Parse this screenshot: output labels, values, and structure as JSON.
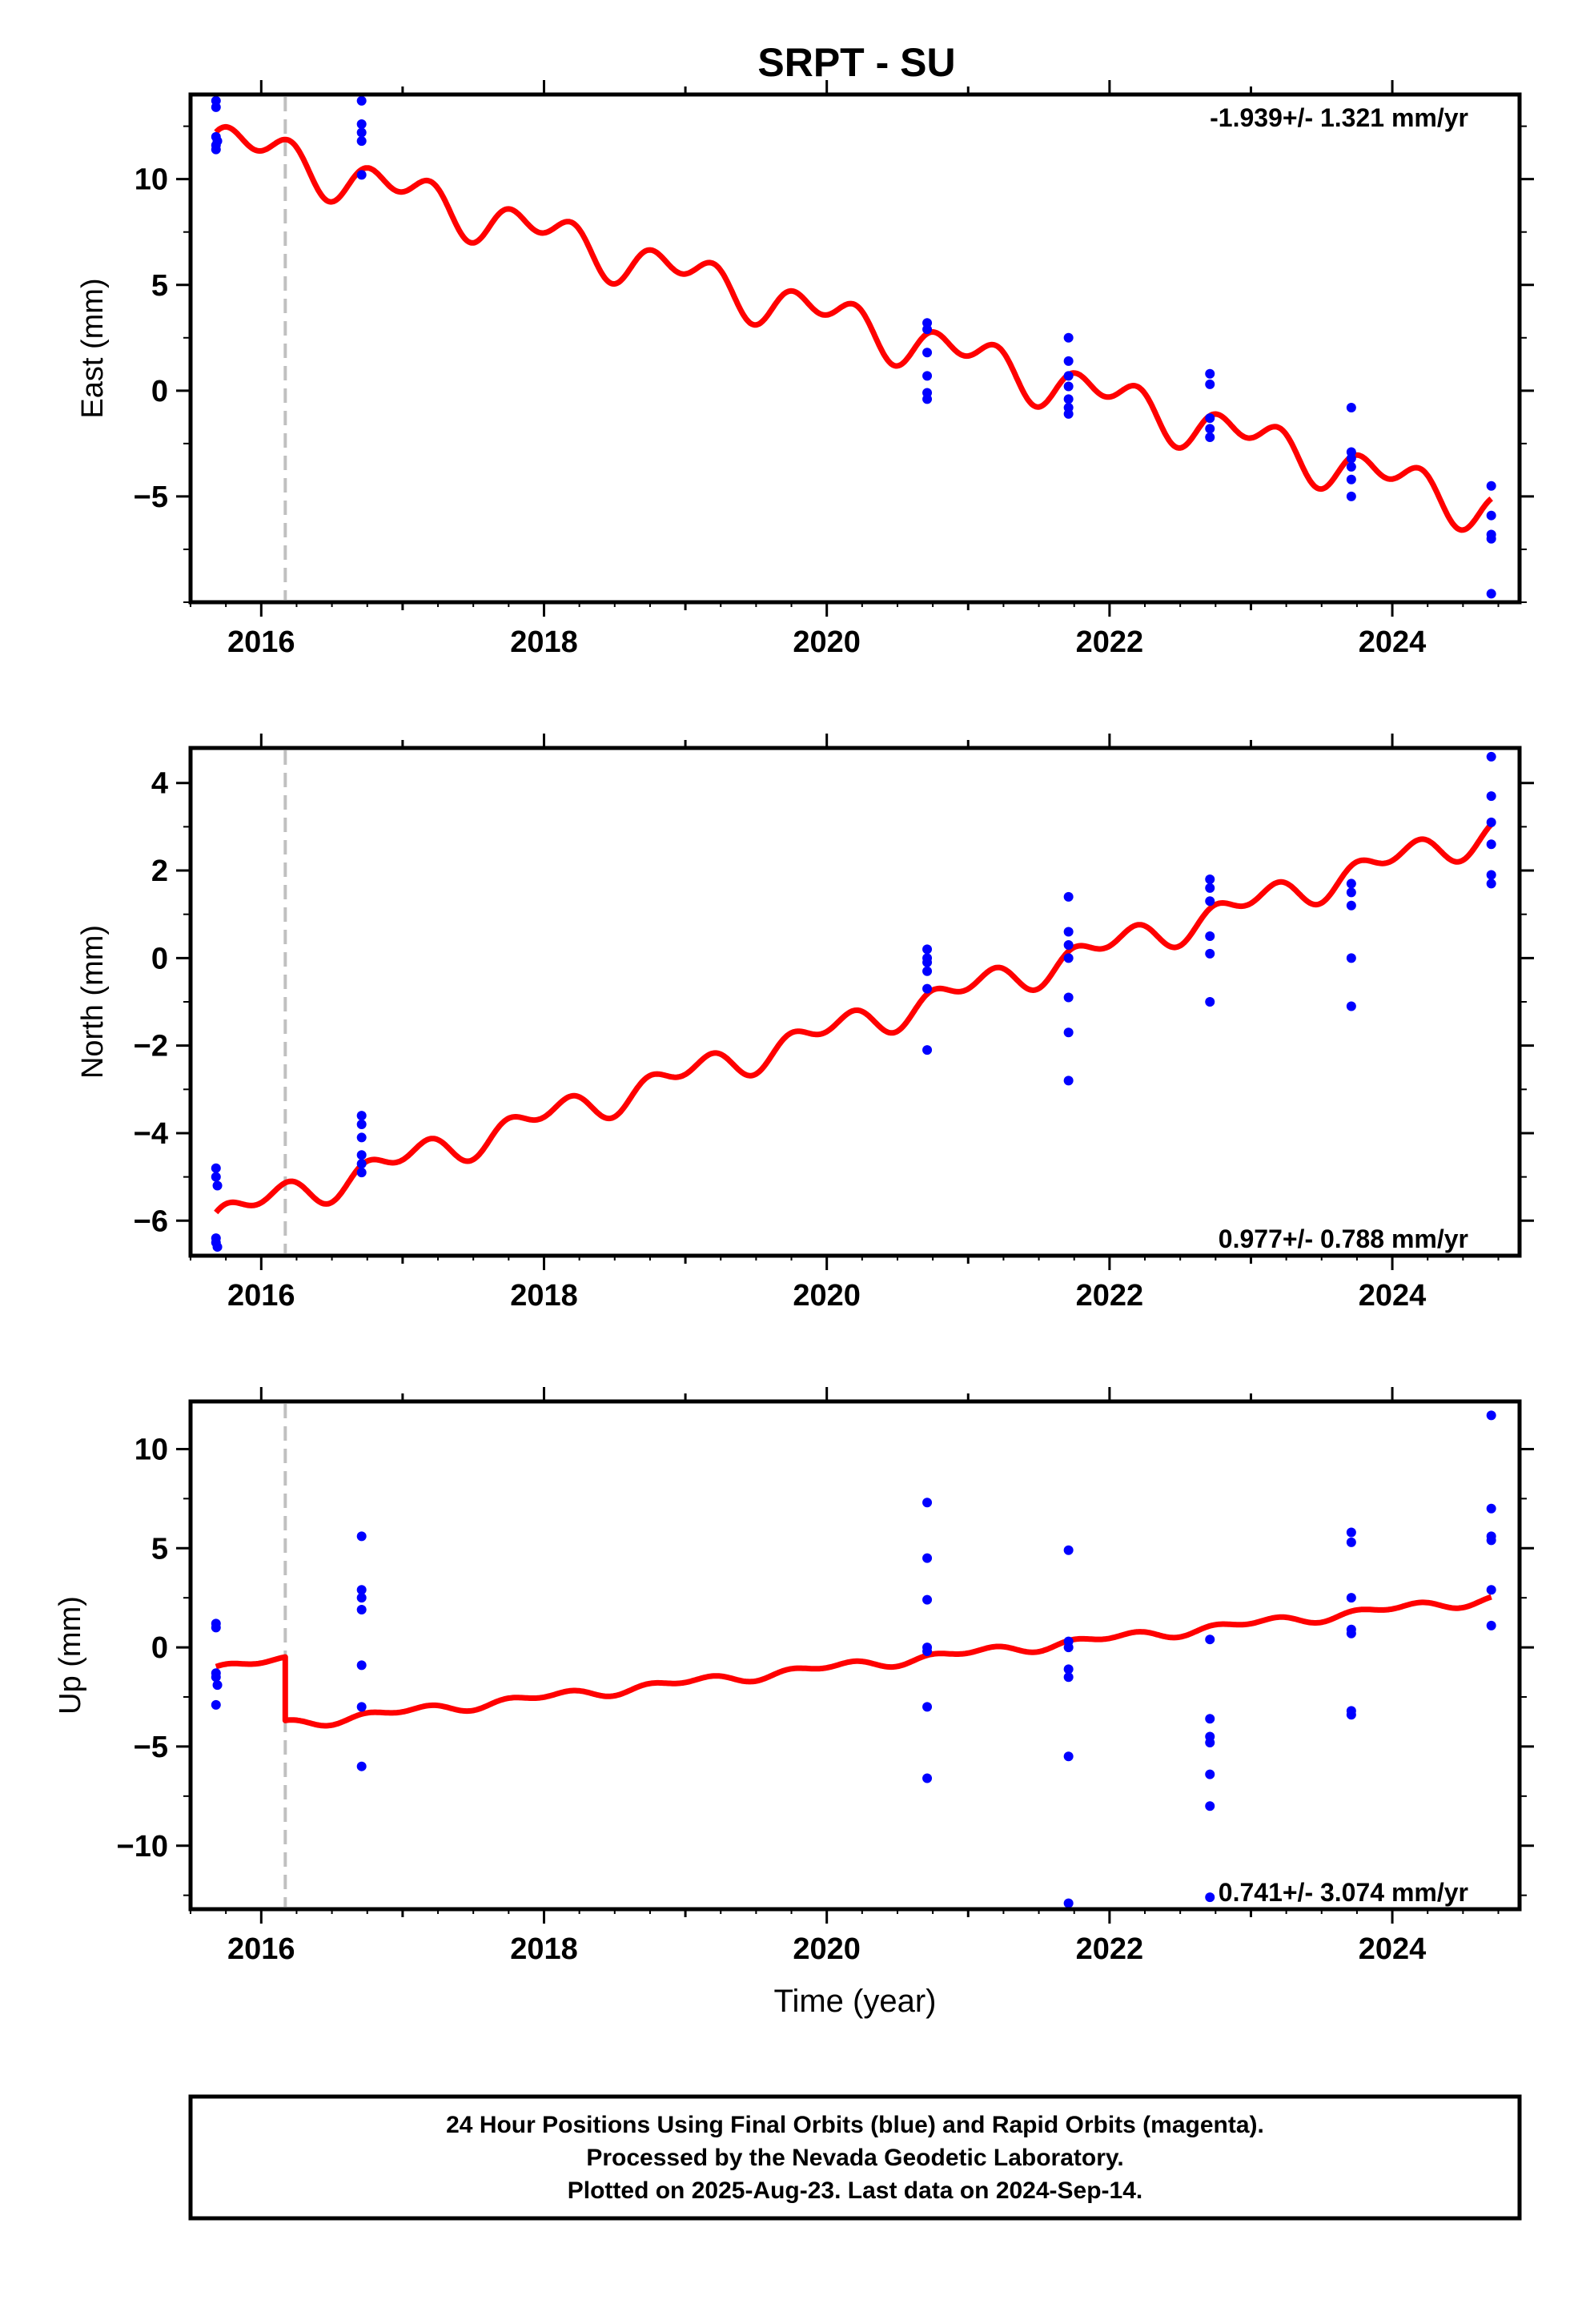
{
  "title": "SRPT - SU",
  "colors": {
    "data_points": "#0000ff",
    "model_line": "#ff0000",
    "offset_line": "#c0c0c0",
    "frame": "#000000"
  },
  "xaxis": {
    "label": "Time (year)",
    "range": [
      2015.5,
      2024.9
    ],
    "major_ticks": [
      2016,
      2018,
      2020,
      2022,
      2024
    ],
    "tick_labels": [
      "2016",
      "2018",
      "2020",
      "2022",
      "2024"
    ]
  },
  "equipment_offset_year": 2016.17,
  "chart_data": [
    {
      "type": "scatter",
      "component": "East",
      "ylabel": "East (mm)",
      "ylim": [
        -10,
        14
      ],
      "y_ticks": [
        -5,
        0,
        5,
        10
      ],
      "y_tick_labels": [
        "−5",
        "0",
        "5",
        "10"
      ],
      "rate_label": "-1.939+/- 1.321 mm/yr",
      "rate_position": "top-right",
      "model": {
        "intercept_at_2016": 11.3,
        "rate": -1.939,
        "seasonal_amplitude": 1.2,
        "offset_at_break": 0.0
      },
      "points": [
        {
          "x": 2015.68,
          "y": 13.7
        },
        {
          "x": 2015.68,
          "y": 13.4
        },
        {
          "x": 2015.68,
          "y": 12.0
        },
        {
          "x": 2015.68,
          "y": 11.6
        },
        {
          "x": 2015.68,
          "y": 11.4
        },
        {
          "x": 2015.69,
          "y": 11.8
        },
        {
          "x": 2016.71,
          "y": 13.7
        },
        {
          "x": 2016.71,
          "y": 12.6
        },
        {
          "x": 2016.71,
          "y": 12.2
        },
        {
          "x": 2016.71,
          "y": 11.8
        },
        {
          "x": 2016.71,
          "y": 10.2
        },
        {
          "x": 2020.71,
          "y": 3.2
        },
        {
          "x": 2020.71,
          "y": 2.9
        },
        {
          "x": 2020.71,
          "y": 1.8
        },
        {
          "x": 2020.71,
          "y": 0.7
        },
        {
          "x": 2020.71,
          "y": -0.1
        },
        {
          "x": 2020.71,
          "y": -0.4
        },
        {
          "x": 2021.71,
          "y": 2.5
        },
        {
          "x": 2021.71,
          "y": 1.4
        },
        {
          "x": 2021.71,
          "y": 0.7
        },
        {
          "x": 2021.71,
          "y": 0.2
        },
        {
          "x": 2021.71,
          "y": -0.4
        },
        {
          "x": 2021.71,
          "y": -0.8
        },
        {
          "x": 2021.71,
          "y": -1.1
        },
        {
          "x": 2022.71,
          "y": 0.8
        },
        {
          "x": 2022.71,
          "y": 0.3
        },
        {
          "x": 2022.71,
          "y": -1.3
        },
        {
          "x": 2022.71,
          "y": -1.8
        },
        {
          "x": 2022.71,
          "y": -2.2
        },
        {
          "x": 2023.71,
          "y": -0.8
        },
        {
          "x": 2023.71,
          "y": -2.9
        },
        {
          "x": 2023.71,
          "y": -3.2
        },
        {
          "x": 2023.71,
          "y": -3.6
        },
        {
          "x": 2023.71,
          "y": -4.2
        },
        {
          "x": 2023.71,
          "y": -5.0
        },
        {
          "x": 2024.7,
          "y": -4.5
        },
        {
          "x": 2024.7,
          "y": -5.9
        },
        {
          "x": 2024.7,
          "y": -6.8
        },
        {
          "x": 2024.7,
          "y": -7.0
        },
        {
          "x": 2024.7,
          "y": -9.6
        }
      ]
    },
    {
      "type": "scatter",
      "component": "North",
      "ylabel": "North (mm)",
      "ylim": [
        -6.8,
        4.8
      ],
      "y_ticks": [
        -6,
        -4,
        -2,
        0,
        2,
        4
      ],
      "y_tick_labels": [
        "−6",
        "−4",
        "−2",
        "0",
        "2",
        "4"
      ],
      "rate_label": "0.977+/- 0.788 mm/yr",
      "rate_position": "bottom-right",
      "model": {
        "intercept_at_2016": -5.6,
        "rate": 0.977,
        "seasonal_amplitude": 0.4,
        "offset_at_break": 0.0
      },
      "points": [
        {
          "x": 2015.68,
          "y": -4.8
        },
        {
          "x": 2015.68,
          "y": -5.0
        },
        {
          "x": 2015.69,
          "y": -5.2
        },
        {
          "x": 2015.68,
          "y": -6.4
        },
        {
          "x": 2015.68,
          "y": -6.5
        },
        {
          "x": 2015.69,
          "y": -6.6
        },
        {
          "x": 2016.71,
          "y": -3.6
        },
        {
          "x": 2016.71,
          "y": -3.8
        },
        {
          "x": 2016.71,
          "y": -4.1
        },
        {
          "x": 2016.71,
          "y": -4.5
        },
        {
          "x": 2016.71,
          "y": -4.7
        },
        {
          "x": 2016.71,
          "y": -4.9
        },
        {
          "x": 2020.71,
          "y": 0.2
        },
        {
          "x": 2020.71,
          "y": 0.0
        },
        {
          "x": 2020.71,
          "y": -0.1
        },
        {
          "x": 2020.71,
          "y": -0.3
        },
        {
          "x": 2020.71,
          "y": -0.7
        },
        {
          "x": 2020.71,
          "y": -2.1
        },
        {
          "x": 2021.71,
          "y": 1.4
        },
        {
          "x": 2021.71,
          "y": 0.6
        },
        {
          "x": 2021.71,
          "y": 0.3
        },
        {
          "x": 2021.71,
          "y": 0.0
        },
        {
          "x": 2021.71,
          "y": -0.9
        },
        {
          "x": 2021.71,
          "y": -1.7
        },
        {
          "x": 2021.71,
          "y": -2.8
        },
        {
          "x": 2022.71,
          "y": 1.8
        },
        {
          "x": 2022.71,
          "y": 1.6
        },
        {
          "x": 2022.71,
          "y": 1.3
        },
        {
          "x": 2022.71,
          "y": 0.5
        },
        {
          "x": 2022.71,
          "y": 0.1
        },
        {
          "x": 2022.71,
          "y": -1.0
        },
        {
          "x": 2023.71,
          "y": 1.7
        },
        {
          "x": 2023.71,
          "y": 1.5
        },
        {
          "x": 2023.71,
          "y": 1.2
        },
        {
          "x": 2023.71,
          "y": 0.0
        },
        {
          "x": 2023.71,
          "y": -1.1
        },
        {
          "x": 2024.7,
          "y": 4.6
        },
        {
          "x": 2024.7,
          "y": 3.7
        },
        {
          "x": 2024.7,
          "y": 3.1
        },
        {
          "x": 2024.7,
          "y": 2.6
        },
        {
          "x": 2024.7,
          "y": 1.9
        },
        {
          "x": 2024.7,
          "y": 1.7
        }
      ]
    },
    {
      "type": "scatter",
      "component": "Up",
      "ylabel": "Up (mm)",
      "ylim": [
        -13.2,
        12.4
      ],
      "y_ticks": [
        -10,
        -5,
        0,
        5,
        10
      ],
      "y_tick_labels": [
        "−10",
        "−5",
        "0",
        "5",
        "10"
      ],
      "rate_label": "0.741+/- 3.074 mm/yr",
      "rate_position": "bottom-right",
      "model": {
        "intercept_at_2016": -0.8,
        "rate": 0.741,
        "seasonal_amplitude": 0.25,
        "offset_at_break": -3.2
      },
      "points": [
        {
          "x": 2015.68,
          "y": 1.2
        },
        {
          "x": 2015.68,
          "y": 1.0
        },
        {
          "x": 2015.68,
          "y": -1.3
        },
        {
          "x": 2015.68,
          "y": -1.5
        },
        {
          "x": 2015.69,
          "y": -1.9
        },
        {
          "x": 2015.68,
          "y": -2.9
        },
        {
          "x": 2016.71,
          "y": 5.6
        },
        {
          "x": 2016.71,
          "y": 2.9
        },
        {
          "x": 2016.71,
          "y": 2.5
        },
        {
          "x": 2016.71,
          "y": 1.9
        },
        {
          "x": 2016.71,
          "y": -0.9
        },
        {
          "x": 2016.71,
          "y": -3.0
        },
        {
          "x": 2016.71,
          "y": -6.0
        },
        {
          "x": 2020.71,
          "y": 7.3
        },
        {
          "x": 2020.71,
          "y": 4.5
        },
        {
          "x": 2020.71,
          "y": 2.4
        },
        {
          "x": 2020.71,
          "y": 0.0
        },
        {
          "x": 2020.71,
          "y": -0.2
        },
        {
          "x": 2020.71,
          "y": -3.0
        },
        {
          "x": 2020.71,
          "y": -6.6
        },
        {
          "x": 2021.71,
          "y": 4.9
        },
        {
          "x": 2021.71,
          "y": 0.3
        },
        {
          "x": 2021.71,
          "y": 0.0
        },
        {
          "x": 2021.71,
          "y": -1.1
        },
        {
          "x": 2021.71,
          "y": -1.5
        },
        {
          "x": 2021.71,
          "y": -5.5
        },
        {
          "x": 2021.71,
          "y": -12.9
        },
        {
          "x": 2022.71,
          "y": 0.4
        },
        {
          "x": 2022.71,
          "y": -3.6
        },
        {
          "x": 2022.71,
          "y": -4.5
        },
        {
          "x": 2022.71,
          "y": -4.8
        },
        {
          "x": 2022.71,
          "y": -6.4
        },
        {
          "x": 2022.71,
          "y": -8.0
        },
        {
          "x": 2022.71,
          "y": -12.6
        },
        {
          "x": 2023.71,
          "y": 5.8
        },
        {
          "x": 2023.71,
          "y": 5.3
        },
        {
          "x": 2023.71,
          "y": 2.5
        },
        {
          "x": 2023.71,
          "y": 0.9
        },
        {
          "x": 2023.71,
          "y": 0.7
        },
        {
          "x": 2023.71,
          "y": -3.2
        },
        {
          "x": 2023.71,
          "y": -3.4
        },
        {
          "x": 2024.7,
          "y": 11.7
        },
        {
          "x": 2024.7,
          "y": 7.0
        },
        {
          "x": 2024.7,
          "y": 5.6
        },
        {
          "x": 2024.7,
          "y": 5.4
        },
        {
          "x": 2024.7,
          "y": 2.9
        },
        {
          "x": 2024.7,
          "y": 1.1
        }
      ]
    }
  ],
  "footer": {
    "line1": "24 Hour Positions Using Final Orbits (blue) and Rapid Orbits (magenta).",
    "line2": "Processed by the Nevada Geodetic Laboratory.",
    "line3": "Plotted on 2025-Aug-23. Last data on 2024-Sep-14."
  }
}
